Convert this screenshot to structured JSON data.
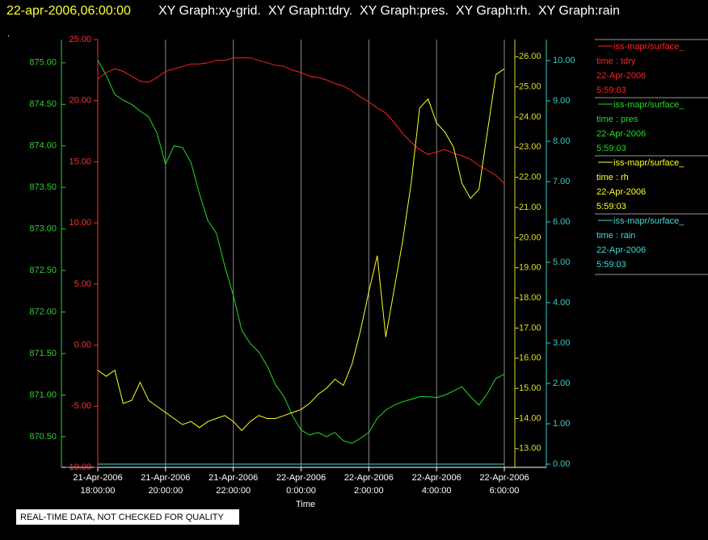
{
  "header": {
    "timestamp": "22-apr-2006,06:00:00",
    "graphs": "XY Graph:xy-grid.  XY Graph:tdry.  XY Graph:pres.  XY Graph:rh.  XY Graph:rain",
    "marker": "."
  },
  "footer": "REAL-TIME DATA, NOT CHECKED FOR QUALITY",
  "chart_data": {
    "type": "line",
    "x_label": "Time",
    "grid": true,
    "xlim": [
      "2006-04-21T18:00:00",
      "2006-04-22T06:00:00"
    ],
    "xticks": [
      {
        "value": "2006-04-21T18:00:00",
        "label": [
          "21-Apr-2006",
          "18:00:00"
        ]
      },
      {
        "value": "2006-04-21T20:00:00",
        "label": [
          "21-Apr-2006",
          "20:00:00"
        ]
      },
      {
        "value": "2006-04-21T22:00:00",
        "label": [
          "21-Apr-2006",
          "22:00:00"
        ]
      },
      {
        "value": "2006-04-22T00:00:00",
        "label": [
          "22-Apr-2006",
          "0:00:00"
        ]
      },
      {
        "value": "2006-04-22T02:00:00",
        "label": [
          "22-Apr-2006",
          "2:00:00"
        ]
      },
      {
        "value": "2006-04-22T04:00:00",
        "label": [
          "22-Apr-2006",
          "4:00:00"
        ]
      },
      {
        "value": "2006-04-22T06:00:00",
        "label": [
          "22-Apr-2006",
          "6:00:00"
        ]
      }
    ],
    "x": [
      "2006-04-21T18:00:00",
      "2006-04-21T18:15:00",
      "2006-04-21T18:30:00",
      "2006-04-21T18:45:00",
      "2006-04-21T19:00:00",
      "2006-04-21T19:15:00",
      "2006-04-21T19:30:00",
      "2006-04-21T19:45:00",
      "2006-04-21T20:00:00",
      "2006-04-21T20:15:00",
      "2006-04-21T20:30:00",
      "2006-04-21T20:45:00",
      "2006-04-21T21:00:00",
      "2006-04-21T21:15:00",
      "2006-04-21T21:30:00",
      "2006-04-21T21:45:00",
      "2006-04-21T22:00:00",
      "2006-04-21T22:15:00",
      "2006-04-21T22:30:00",
      "2006-04-21T22:45:00",
      "2006-04-21T23:00:00",
      "2006-04-21T23:15:00",
      "2006-04-21T23:30:00",
      "2006-04-21T23:45:00",
      "2006-04-22T00:00:00",
      "2006-04-22T00:15:00",
      "2006-04-22T00:30:00",
      "2006-04-22T00:45:00",
      "2006-04-22T01:00:00",
      "2006-04-22T01:15:00",
      "2006-04-22T01:30:00",
      "2006-04-22T01:45:00",
      "2006-04-22T02:00:00",
      "2006-04-22T02:15:00",
      "2006-04-22T02:30:00",
      "2006-04-22T02:45:00",
      "2006-04-22T03:00:00",
      "2006-04-22T03:15:00",
      "2006-04-22T03:30:00",
      "2006-04-22T03:45:00",
      "2006-04-22T04:00:00",
      "2006-04-22T04:15:00",
      "2006-04-22T04:30:00",
      "2006-04-22T04:45:00",
      "2006-04-22T05:00:00",
      "2006-04-22T05:15:00",
      "2006-04-22T05:30:00",
      "2006-04-22T05:45:00",
      "2006-04-22T06:00:00"
    ],
    "series": [
      {
        "name": "iss-mapr/surface_",
        "legend_lines": [
          "time : tdry",
          "22-Apr-2006",
          "5:59:03"
        ],
        "color": "#ff2020",
        "tick_color": "#ff3030",
        "axis_side": "left-inner",
        "ylim": [
          -10,
          25
        ],
        "yticks": [
          {
            "value": -10,
            "label": "-10.00"
          },
          {
            "value": -5,
            "label": "-5.00"
          },
          {
            "value": 0,
            "label": "0.00"
          },
          {
            "value": 5,
            "label": "5.00"
          },
          {
            "value": 10,
            "label": "10.00"
          },
          {
            "value": 15,
            "label": "15.00"
          },
          {
            "value": 20,
            "label": "20.00"
          },
          {
            "value": 25,
            "label": "25.00"
          }
        ],
        "values": [
          21.8,
          22.3,
          22.6,
          22.4,
          22.0,
          21.6,
          21.5,
          21.9,
          22.4,
          22.6,
          22.8,
          23.0,
          23.0,
          23.1,
          23.3,
          23.3,
          23.5,
          23.5,
          23.5,
          23.3,
          23.1,
          22.9,
          22.8,
          22.5,
          22.3,
          22.0,
          21.9,
          21.7,
          21.4,
          21.2,
          20.8,
          20.3,
          19.9,
          19.4,
          19.0,
          18.2,
          17.3,
          16.6,
          16.0,
          15.6,
          15.8,
          16.0,
          15.7,
          15.5,
          15.2,
          14.7,
          14.3,
          13.9,
          13.2
        ]
      },
      {
        "name": "iss-mapr/surface_",
        "legend_lines": [
          "time : pres",
          "22-Apr-2006",
          "5:59:03"
        ],
        "color": "#22dd22",
        "tick_color": "#33cc33",
        "axis_side": "left-outer",
        "ylim": [
          870.13,
          875.28
        ],
        "yticks": [
          {
            "value": 870.5,
            "label": "870.50"
          },
          {
            "value": 871,
            "label": "871.00"
          },
          {
            "value": 871.5,
            "label": "871.50"
          },
          {
            "value": 872,
            "label": "872.00"
          },
          {
            "value": 872.5,
            "label": "872.50"
          },
          {
            "value": 873,
            "label": "873.00"
          },
          {
            "value": 873.5,
            "label": "873.50"
          },
          {
            "value": 874,
            "label": "874.00"
          },
          {
            "value": 874.5,
            "label": "874.50"
          },
          {
            "value": 875,
            "label": "875.00"
          }
        ],
        "values": [
          875.03,
          874.85,
          874.62,
          874.55,
          874.5,
          874.42,
          874.35,
          874.15,
          873.78,
          874.0,
          873.98,
          873.8,
          873.42,
          873.1,
          872.95,
          872.55,
          872.2,
          871.78,
          871.62,
          871.52,
          871.35,
          871.12,
          870.98,
          870.75,
          870.58,
          870.52,
          870.55,
          870.5,
          870.55,
          870.45,
          870.42,
          870.48,
          870.55,
          870.72,
          870.82,
          870.88,
          870.92,
          870.95,
          870.98,
          870.98,
          870.97,
          871.0,
          871.05,
          871.1,
          870.98,
          870.88,
          871.02,
          871.2,
          871.25
        ]
      },
      {
        "name": "iss-mapr/surface_",
        "legend_lines": [
          "time : rh",
          "22-Apr-2006",
          "5:59:03"
        ],
        "color": "#ffff22",
        "tick_color": "#dddd33",
        "axis_side": "right-inner",
        "ylim": [
          12.38,
          26.57
        ],
        "yticks": [
          {
            "value": 13,
            "label": "13.00"
          },
          {
            "value": 14,
            "label": "14.00"
          },
          {
            "value": 15,
            "label": "15.00"
          },
          {
            "value": 16,
            "label": "16.00"
          },
          {
            "value": 17,
            "label": "17.00"
          },
          {
            "value": 18,
            "label": "18.00"
          },
          {
            "value": 19,
            "label": "19.00"
          },
          {
            "value": 20,
            "label": "20.00"
          },
          {
            "value": 21,
            "label": "21.00"
          },
          {
            "value": 22,
            "label": "22.00"
          },
          {
            "value": 23,
            "label": "23.00"
          },
          {
            "value": 24,
            "label": "24.00"
          },
          {
            "value": 25,
            "label": "25.00"
          },
          {
            "value": 26,
            "label": "26.00"
          }
        ],
        "values": [
          15.6,
          15.4,
          15.6,
          14.5,
          14.6,
          15.2,
          14.6,
          14.4,
          14.2,
          14.0,
          13.8,
          13.9,
          13.7,
          13.9,
          14.0,
          14.1,
          13.9,
          13.6,
          13.9,
          14.1,
          14.0,
          14.0,
          14.1,
          14.2,
          14.3,
          14.5,
          14.8,
          15.0,
          15.3,
          15.1,
          15.8,
          16.9,
          18.2,
          19.4,
          16.7,
          18.3,
          19.9,
          21.8,
          24.3,
          24.6,
          23.8,
          23.5,
          23.0,
          21.8,
          21.3,
          21.6,
          23.5,
          25.4,
          25.6
        ]
      },
      {
        "name": "iss-mapr/surface_",
        "legend_lines": [
          "time : rain",
          "22-Apr-2006",
          "5:59:03"
        ],
        "color": "#40d8d8",
        "tick_color": "#40c8c8",
        "axis_side": "right-outer",
        "ylim": [
          -0.08,
          10.52
        ],
        "yticks": [
          {
            "value": 0,
            "label": "0.00"
          },
          {
            "value": 1,
            "label": "1.00"
          },
          {
            "value": 2,
            "label": "2.00"
          },
          {
            "value": 3,
            "label": "3.00"
          },
          {
            "value": 4,
            "label": "4.00"
          },
          {
            "value": 5,
            "label": "5.00"
          },
          {
            "value": 6,
            "label": "6.00"
          },
          {
            "value": 7,
            "label": "7.00"
          },
          {
            "value": 8,
            "label": "8.00"
          },
          {
            "value": 9,
            "label": "9.00"
          },
          {
            "value": 10,
            "label": "10.00"
          }
        ],
        "values": [
          0,
          0,
          0,
          0,
          0,
          0,
          0,
          0,
          0,
          0,
          0,
          0,
          0,
          0,
          0,
          0,
          0,
          0,
          0,
          0,
          0,
          0,
          0,
          0,
          0,
          0,
          0,
          0,
          0,
          0,
          0,
          0,
          0,
          0,
          0,
          0,
          0,
          0,
          0,
          0,
          0,
          0,
          0,
          0,
          0,
          0,
          0,
          0,
          0
        ]
      }
    ]
  }
}
